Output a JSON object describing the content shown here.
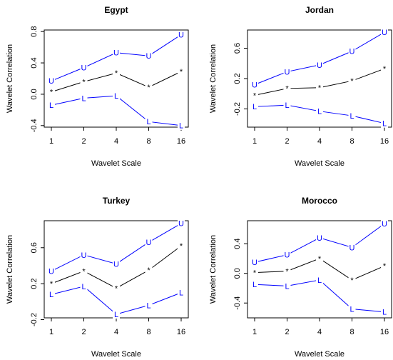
{
  "chart_data": [
    {
      "type": "line",
      "title": "Egypt",
      "x_label": "Wavelet Scale",
      "y_label": "Wavelet Correlation",
      "categories": [
        "1",
        "2",
        "4",
        "8",
        "16"
      ],
      "ylim": [
        -0.42,
        0.82
      ],
      "yticks": [
        -0.4,
        {
          "value": 0,
          "label": "0.0"
        },
        0.4,
        0.8
      ],
      "series": [
        {
          "name": "U",
          "color": "#0000ff",
          "values": [
            0.17,
            0.34,
            0.53,
            0.49,
            0.76
          ]
        },
        {
          "name": "*",
          "color": "#000000",
          "values": [
            0.03,
            0.16,
            0.27,
            0.09,
            0.29
          ]
        },
        {
          "name": "L",
          "color": "#0000ff",
          "values": [
            -0.14,
            -0.05,
            -0.02,
            -0.35,
            -0.4
          ]
        }
      ]
    },
    {
      "type": "line",
      "title": "Jordan",
      "x_label": "Wavelet Scale",
      "y_label": "Wavelet Correlation",
      "categories": [
        "1",
        "2",
        "4",
        "8",
        "16"
      ],
      "ylim": [
        -0.44,
        0.84
      ],
      "yticks": [
        -0.2,
        0.2,
        0.6
      ],
      "series": [
        {
          "name": "U",
          "color": "#0000ff",
          "values": [
            0.12,
            0.29,
            0.38,
            0.56,
            0.81
          ]
        },
        {
          "name": "*",
          "color": "#000000",
          "values": [
            -0.02,
            0.07,
            0.08,
            0.17,
            0.33
          ]
        },
        {
          "name": "L",
          "color": "#0000ff",
          "values": [
            -0.17,
            -0.15,
            -0.23,
            -0.29,
            -0.39
          ]
        }
      ]
    },
    {
      "type": "line",
      "title": "Turkey",
      "x_label": "Wavelet Scale",
      "y_label": "Wavelet Correlation",
      "categories": [
        "1",
        "2",
        "4",
        "8",
        "16"
      ],
      "ylim": [
        -0.18,
        0.9
      ],
      "yticks": [
        -0.2,
        0.2,
        0.6
      ],
      "series": [
        {
          "name": "U",
          "color": "#0000ff",
          "values": [
            0.34,
            0.52,
            0.42,
            0.66,
            0.87
          ]
        },
        {
          "name": "*",
          "color": "#000000",
          "values": [
            0.2,
            0.34,
            0.15,
            0.35,
            0.62
          ]
        },
        {
          "name": "L",
          "color": "#0000ff",
          "values": [
            0.08,
            0.17,
            -0.14,
            -0.04,
            0.1
          ]
        }
      ]
    },
    {
      "type": "line",
      "title": "Morocco",
      "x_label": "Wavelet Scale",
      "y_label": "Wavelet Correlation",
      "categories": [
        "1",
        "2",
        "4",
        "8",
        "16"
      ],
      "ylim": [
        -0.6,
        0.71
      ],
      "yticks": [
        -0.4,
        {
          "value": 0,
          "label": "0.0"
        },
        0.4
      ],
      "series": [
        {
          "name": "U",
          "color": "#0000ff",
          "values": [
            0.15,
            0.25,
            0.48,
            0.35,
            0.67
          ]
        },
        {
          "name": "*",
          "color": "#000000",
          "values": [
            0.01,
            0.03,
            0.2,
            -0.09,
            0.1
          ]
        },
        {
          "name": "L",
          "color": "#0000ff",
          "values": [
            -0.15,
            -0.17,
            -0.09,
            -0.48,
            -0.52
          ]
        }
      ]
    }
  ]
}
